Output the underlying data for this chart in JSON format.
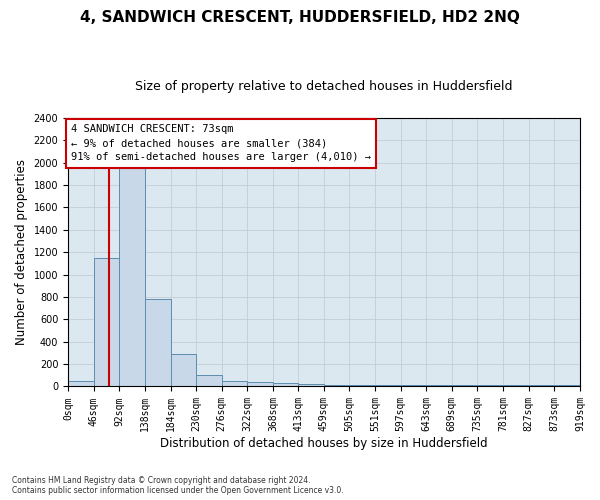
{
  "title": "4, SANDWICH CRESCENT, HUDDERSFIELD, HD2 2NQ",
  "subtitle": "Size of property relative to detached houses in Huddersfield",
  "xlabel": "Distribution of detached houses by size in Huddersfield",
  "ylabel": "Number of detached properties",
  "footnote1": "Contains HM Land Registry data © Crown copyright and database right 2024.",
  "footnote2": "Contains public sector information licensed under the Open Government Licence v3.0.",
  "annotation_line1": "4 SANDWICH CRESCENT: 73sqm",
  "annotation_line2": "← 9% of detached houses are smaller (384)",
  "annotation_line3": "91% of semi-detached houses are larger (4,010) →",
  "bar_color": "#c8d8e8",
  "bar_edge_color": "#5b8db0",
  "bar_heights": [
    50,
    1150,
    1950,
    780,
    290,
    100,
    50,
    40,
    30,
    20,
    15,
    10,
    10,
    10,
    10,
    10,
    10,
    10,
    10,
    10
  ],
  "bin_edges": [
    0,
    46,
    92,
    138,
    184,
    230,
    276,
    322,
    368,
    413,
    459,
    505,
    551,
    597,
    643,
    689,
    735,
    781,
    827,
    873,
    919
  ],
  "x_tick_labels": [
    "0sqm",
    "46sqm",
    "92sqm",
    "138sqm",
    "184sqm",
    "230sqm",
    "276sqm",
    "322sqm",
    "368sqm",
    "413sqm",
    "459sqm",
    "505sqm",
    "551sqm",
    "597sqm",
    "643sqm",
    "689sqm",
    "735sqm",
    "781sqm",
    "827sqm",
    "873sqm",
    "919sqm"
  ],
  "property_line_x": 73,
  "ylim": [
    0,
    2400
  ],
  "yticks": [
    0,
    200,
    400,
    600,
    800,
    1000,
    1200,
    1400,
    1600,
    1800,
    2000,
    2200,
    2400
  ],
  "grid_color": "#c0c8d0",
  "bg_color": "#dce8f0",
  "annotation_box_color": "#cc0000",
  "title_fontsize": 11,
  "subtitle_fontsize": 9,
  "axis_label_fontsize": 8.5,
  "tick_fontsize": 7,
  "annotation_fontsize": 7.5
}
